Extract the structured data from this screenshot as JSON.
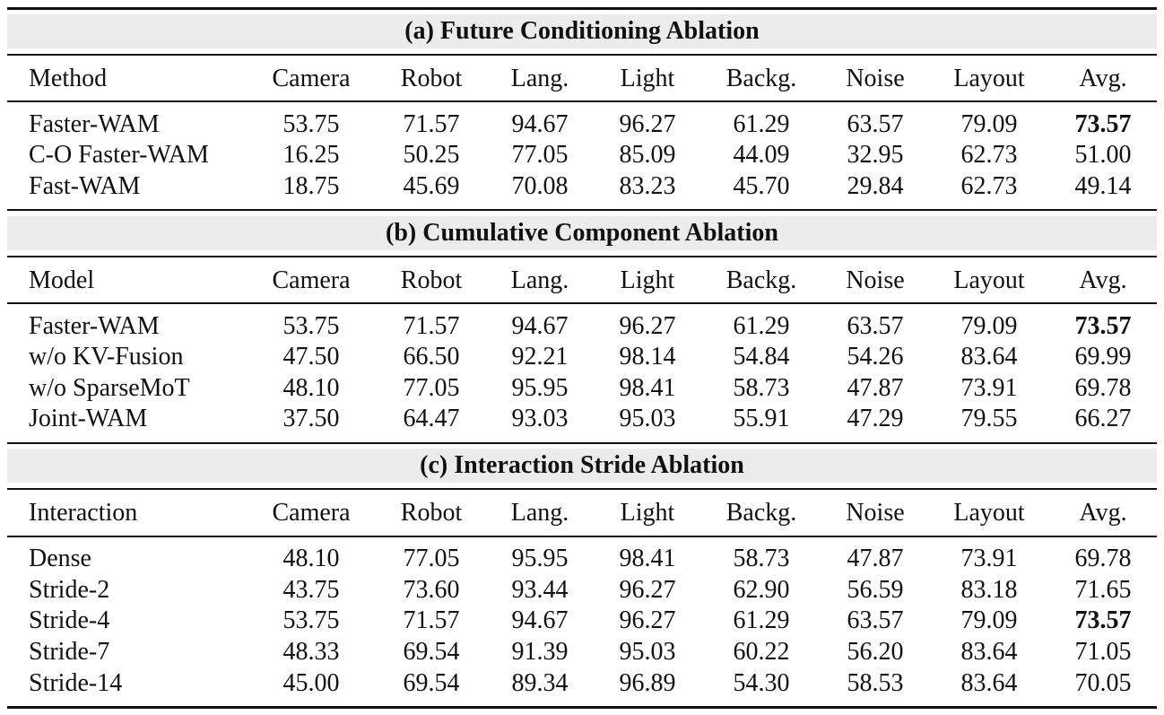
{
  "sections": [
    {
      "title": "(a) Future Conditioning Ablation",
      "header": [
        "Method",
        "Camera",
        "Robot",
        "Lang.",
        "Light",
        "Backg.",
        "Noise",
        "Layout",
        "Avg."
      ],
      "rows": [
        [
          "Faster-WAM",
          "53.75",
          "71.57",
          "94.67",
          "96.27",
          "61.29",
          "63.57",
          "79.09",
          "73.57"
        ],
        [
          "C-O Faster-WAM",
          "16.25",
          "50.25",
          "77.05",
          "85.09",
          "44.09",
          "32.95",
          "62.73",
          "51.00"
        ],
        [
          "Fast-WAM",
          "18.75",
          "45.69",
          "70.08",
          "83.23",
          "45.70",
          "29.84",
          "62.73",
          "49.14"
        ]
      ]
    },
    {
      "title": "(b) Cumulative Component Ablation",
      "header": [
        "Model",
        "Camera",
        "Robot",
        "Lang.",
        "Light",
        "Backg.",
        "Noise",
        "Layout",
        "Avg."
      ],
      "rows": [
        [
          "Faster-WAM",
          "53.75",
          "71.57",
          "94.67",
          "96.27",
          "61.29",
          "63.57",
          "79.09",
          "73.57"
        ],
        [
          "w/o KV-Fusion",
          "47.50",
          "66.50",
          "92.21",
          "98.14",
          "54.84",
          "54.26",
          "83.64",
          "69.99"
        ],
        [
          "w/o SparseMoT",
          "48.10",
          "77.05",
          "95.95",
          "98.41",
          "58.73",
          "47.87",
          "73.91",
          "69.78"
        ],
        [
          "Joint-WAM",
          "37.50",
          "64.47",
          "93.03",
          "95.03",
          "55.91",
          "47.29",
          "79.55",
          "66.27"
        ]
      ]
    },
    {
      "title": "(c) Interaction Stride Ablation",
      "header": [
        "Interaction",
        "Camera",
        "Robot",
        "Lang.",
        "Light",
        "Backg.",
        "Noise",
        "Layout",
        "Avg."
      ],
      "rows": [
        [
          "Dense",
          "48.10",
          "77.05",
          "95.95",
          "98.41",
          "58.73",
          "47.87",
          "73.91",
          "69.78"
        ],
        [
          "Stride-2",
          "43.75",
          "73.60",
          "93.44",
          "96.27",
          "62.90",
          "56.59",
          "83.18",
          "71.65"
        ],
        [
          "Stride-4",
          "53.75",
          "71.57",
          "94.67",
          "96.27",
          "61.29",
          "63.57",
          "79.09",
          "73.57"
        ],
        [
          "Stride-7",
          "48.33",
          "69.54",
          "91.39",
          "95.03",
          "60.22",
          "56.20",
          "83.64",
          "71.05"
        ],
        [
          "Stride-14",
          "45.00",
          "69.54",
          "89.34",
          "96.89",
          "54.30",
          "58.53",
          "83.64",
          "70.05"
        ]
      ]
    }
  ]
}
